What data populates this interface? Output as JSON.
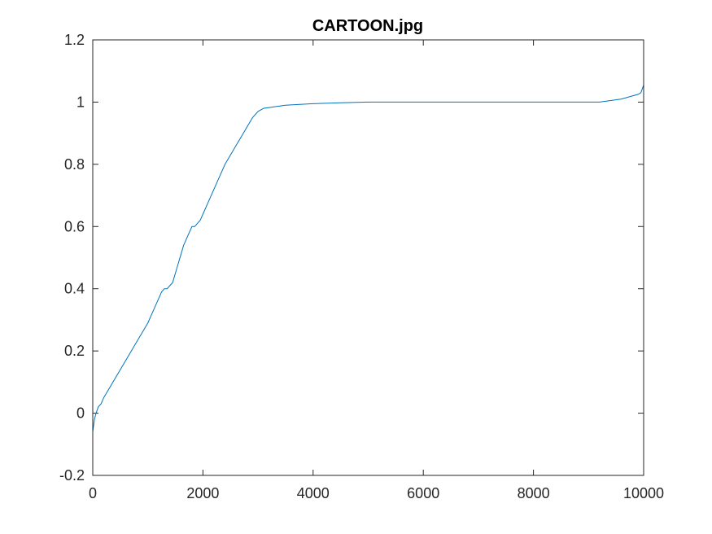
{
  "chart_data": {
    "type": "line",
    "title": "CARTOON.jpg",
    "xlabel": "",
    "ylabel": "",
    "xlim": [
      0,
      10000
    ],
    "ylim": [
      -0.2,
      1.2
    ],
    "x_ticks": [
      0,
      2000,
      4000,
      6000,
      8000,
      10000
    ],
    "y_ticks": [
      -0.2,
      0,
      0.2,
      0.4,
      0.6,
      0.8,
      1,
      1.2
    ],
    "x_tick_labels": [
      "0",
      "2000",
      "4000",
      "6000",
      "8000",
      "10000"
    ],
    "y_tick_labels": [
      "-0.2",
      "0",
      "0.2",
      "0.4",
      "0.6",
      "0.8",
      "1",
      "1.2"
    ],
    "grid": false,
    "line_color": "#0072BD",
    "series": [
      {
        "x": [
          0,
          30,
          60,
          100,
          150,
          200,
          300,
          400,
          500,
          600,
          700,
          800,
          900,
          1000,
          1100,
          1150,
          1200,
          1250,
          1300,
          1350,
          1400,
          1450,
          1500,
          1550,
          1600,
          1650,
          1700,
          1750,
          1800,
          1850,
          1900,
          1950,
          2000,
          2100,
          2200,
          2300,
          2400,
          2500,
          2600,
          2700,
          2800,
          2900,
          3000,
          3100,
          3300,
          3500,
          4000,
          4500,
          5000,
          6000,
          7000,
          8000,
          9000,
          9200,
          9400,
          9600,
          9800,
          9900,
          9950,
          10000
        ],
        "y": [
          -0.06,
          -0.02,
          0.0,
          0.02,
          0.03,
          0.05,
          0.08,
          0.11,
          0.14,
          0.17,
          0.2,
          0.23,
          0.26,
          0.29,
          0.33,
          0.35,
          0.37,
          0.39,
          0.4,
          0.4,
          0.41,
          0.42,
          0.45,
          0.48,
          0.51,
          0.54,
          0.56,
          0.58,
          0.6,
          0.6,
          0.61,
          0.62,
          0.64,
          0.68,
          0.72,
          0.76,
          0.8,
          0.83,
          0.86,
          0.89,
          0.92,
          0.95,
          0.97,
          0.98,
          0.985,
          0.99,
          0.995,
          0.998,
          1.0,
          1.0,
          1.0,
          1.0,
          1.0,
          1.0,
          1.005,
          1.01,
          1.02,
          1.025,
          1.03,
          1.055
        ]
      }
    ]
  }
}
